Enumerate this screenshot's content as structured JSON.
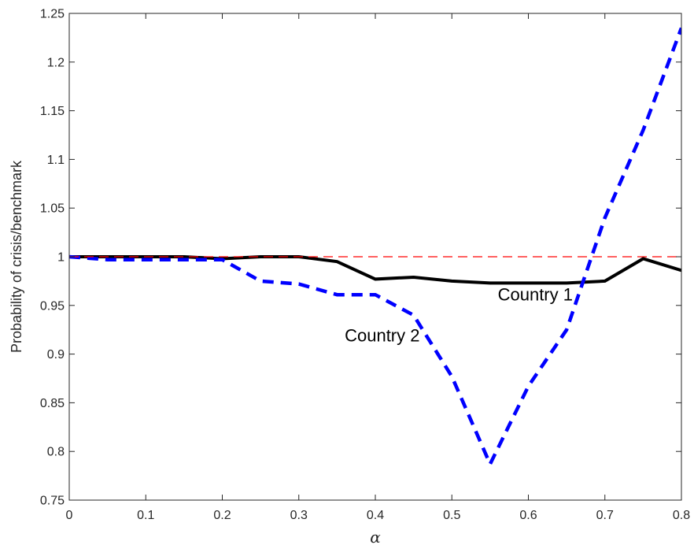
{
  "chart_data": {
    "type": "line",
    "xlabel": "α",
    "ylabel": "Probability of crisis/benchmark",
    "xlim": [
      0,
      0.8
    ],
    "ylim": [
      0.75,
      1.25
    ],
    "xticks": [
      "0",
      "0.1",
      "0.2",
      "0.3",
      "0.4",
      "0.5",
      "0.6",
      "0.7",
      "0.8"
    ],
    "yticks": [
      "0.75",
      "0.8",
      "0.85",
      "0.9",
      "0.95",
      "1",
      "1.05",
      "1.1",
      "1.15",
      "1.2",
      "1.25"
    ],
    "grid": false,
    "series": [
      {
        "name": "Country 1",
        "color": "#000000",
        "style": "solid",
        "x": [
          0,
          0.05,
          0.1,
          0.15,
          0.2,
          0.25,
          0.3,
          0.35,
          0.4,
          0.45,
          0.5,
          0.55,
          0.6,
          0.65,
          0.7,
          0.75,
          0.8
        ],
        "y": [
          1.0,
          1.0,
          1.0,
          1.0,
          0.998,
          1.0,
          1.0,
          0.995,
          0.977,
          0.979,
          0.975,
          0.973,
          0.973,
          0.973,
          0.975,
          0.998,
          0.986
        ]
      },
      {
        "name": "Country 2",
        "color": "#0000ff",
        "style": "dashed",
        "x": [
          0,
          0.05,
          0.1,
          0.15,
          0.2,
          0.25,
          0.3,
          0.35,
          0.4,
          0.45,
          0.5,
          0.55,
          0.6,
          0.65,
          0.7,
          0.75,
          0.8
        ],
        "y": [
          1.0,
          0.997,
          0.997,
          0.997,
          0.997,
          0.975,
          0.972,
          0.961,
          0.961,
          0.94,
          0.877,
          0.787,
          0.867,
          0.925,
          1.04,
          1.13,
          1.235
        ]
      },
      {
        "name": "",
        "color": "#ff0000",
        "style": "dashed-thin",
        "x": [
          0,
          0.8
        ],
        "y": [
          1.0,
          1.0
        ]
      }
    ],
    "annotations": [
      {
        "text": "Country 1",
        "x": 0.56,
        "y": 0.955
      },
      {
        "text": "Country 2",
        "x": 0.36,
        "y": 0.913
      }
    ]
  }
}
